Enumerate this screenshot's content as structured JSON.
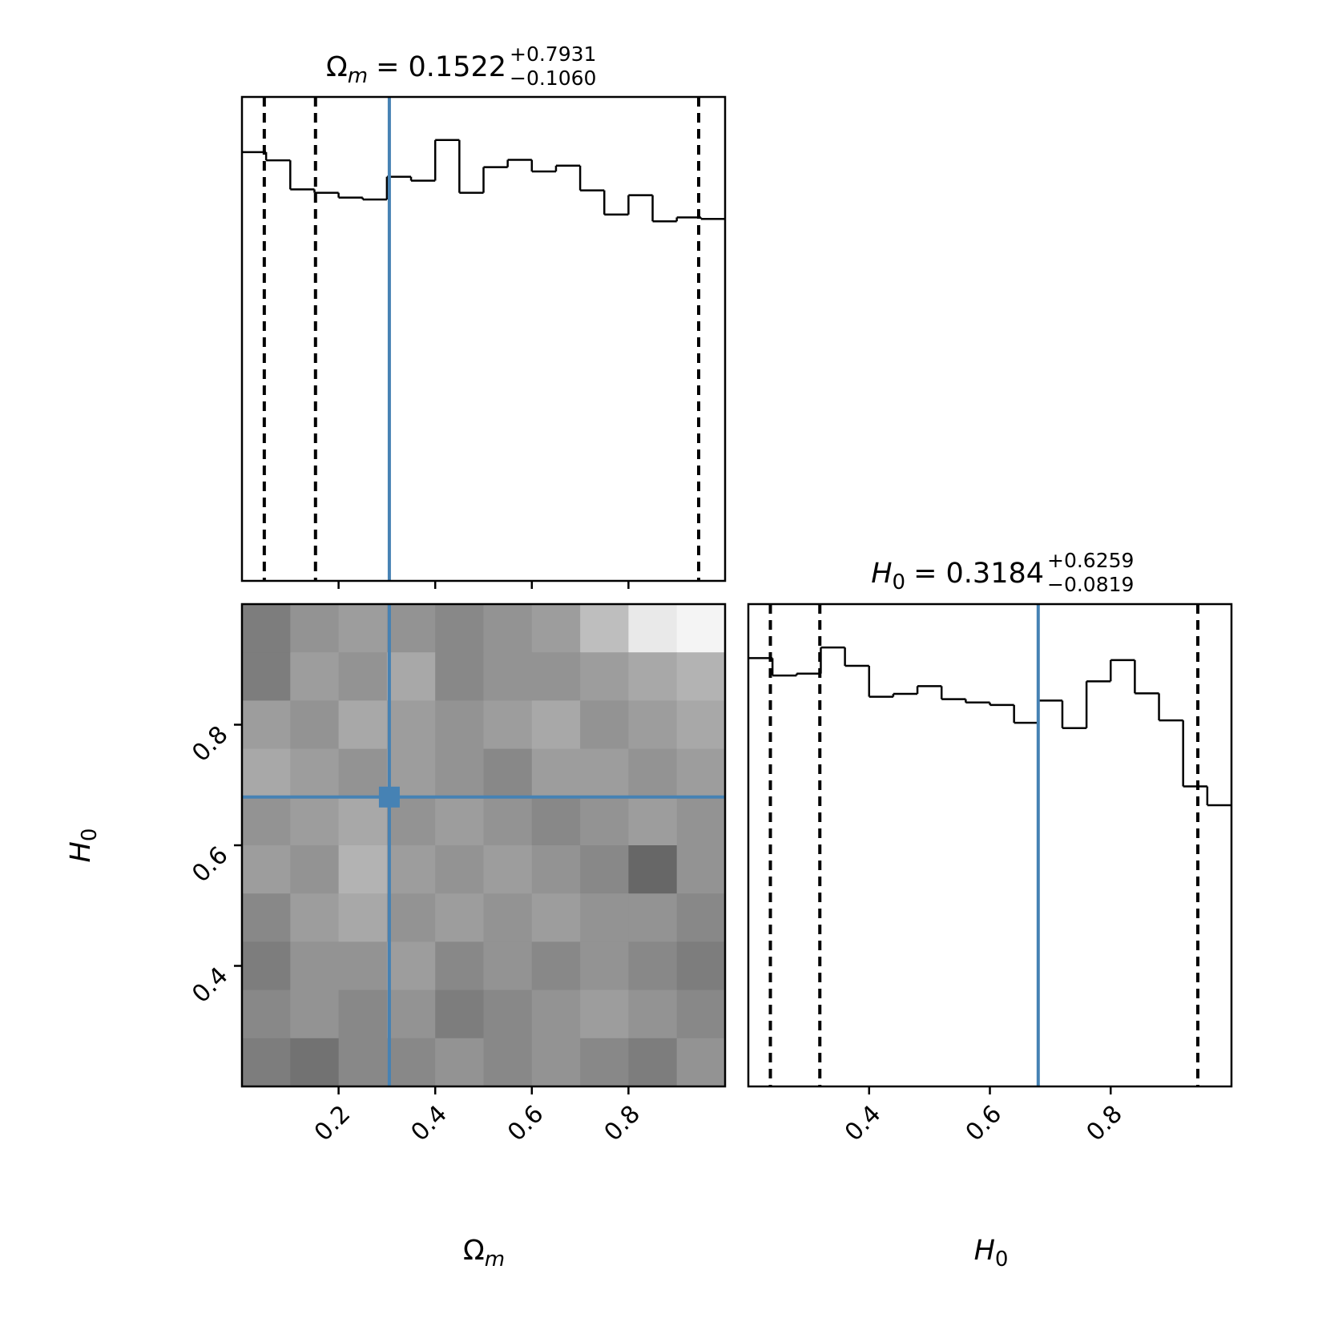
{
  "chart_data": [
    {
      "type": "histogram",
      "title": {
        "symbol": "Ω",
        "subscript": "m",
        "text": "= 0.1522",
        "sup": "+0.7931",
        "sub": "−0.1060"
      },
      "bins": [
        0,
        0.05,
        0.1,
        0.15,
        0.2,
        0.25,
        0.3,
        0.35,
        0.4,
        0.45,
        0.5,
        0.55,
        0.6,
        0.65,
        0.7,
        0.75,
        0.8,
        0.85,
        0.9,
        0.95,
        1.0
      ],
      "values": [
        88.6,
        86.9,
        80.9,
        80.2,
        79.2,
        78.8,
        83.5,
        82.7,
        91.1,
        80.2,
        85.5,
        87.0,
        84.6,
        85.8,
        80.7,
        75.7,
        79.7,
        74.3,
        75.1,
        74.8
      ],
      "color": "#000000",
      "xlim": [
        0,
        1.0
      ],
      "xticks": [
        0.2,
        0.4,
        0.6,
        0.8
      ],
      "xtick_labels": false,
      "ylim": [
        0,
        100
      ],
      "quantiles": [
        0.0462,
        0.1522,
        0.9453
      ],
      "truth": 0.305,
      "truth_color": "#4682b4"
    },
    {
      "type": "hist2d",
      "xlabel": {
        "symbol": "Ω",
        "subscript": "m"
      },
      "ylabel": {
        "symbol": "H",
        "subscript": "0"
      },
      "xlim": [
        0,
        1.0
      ],
      "xticks": [
        0.2,
        0.4,
        0.6,
        0.8
      ],
      "xtick_labels": true,
      "ylim": [
        0.2,
        1.0
      ],
      "yticks": [
        0.4,
        0.6,
        0.8
      ],
      "density": [
        [
          0.6,
          0.5,
          0.45,
          0.5,
          0.55,
          0.5,
          0.45,
          0.3,
          0.1,
          0.05
        ],
        [
          0.6,
          0.45,
          0.5,
          0.4,
          0.55,
          0.5,
          0.5,
          0.45,
          0.4,
          0.35
        ],
        [
          0.45,
          0.5,
          0.4,
          0.45,
          0.5,
          0.45,
          0.4,
          0.5,
          0.45,
          0.4
        ],
        [
          0.4,
          0.45,
          0.5,
          0.45,
          0.5,
          0.55,
          0.45,
          0.45,
          0.5,
          0.45
        ],
        [
          0.5,
          0.45,
          0.4,
          0.5,
          0.45,
          0.5,
          0.55,
          0.5,
          0.45,
          0.5
        ],
        [
          0.45,
          0.5,
          0.35,
          0.45,
          0.5,
          0.45,
          0.5,
          0.55,
          0.7,
          0.5
        ],
        [
          0.55,
          0.45,
          0.4,
          0.5,
          0.45,
          0.5,
          0.45,
          0.5,
          0.5,
          0.55
        ],
        [
          0.6,
          0.5,
          0.5,
          0.45,
          0.55,
          0.5,
          0.55,
          0.5,
          0.55,
          0.6
        ],
        [
          0.55,
          0.5,
          0.55,
          0.5,
          0.6,
          0.55,
          0.5,
          0.45,
          0.5,
          0.55
        ],
        [
          0.6,
          0.65,
          0.55,
          0.55,
          0.5,
          0.55,
          0.5,
          0.55,
          0.6,
          0.5
        ]
      ],
      "truth": [
        0.305,
        0.68
      ],
      "truth_color": "#4682b4"
    },
    {
      "type": "histogram",
      "title": {
        "symbol": "H",
        "subscript": "0",
        "text": "= 0.3184",
        "sup": "+0.6259",
        "sub": "−0.0819"
      },
      "xlabel": {
        "symbol": "H",
        "subscript": "0"
      },
      "bins": [
        0.2,
        0.24,
        0.28,
        0.32,
        0.36,
        0.4,
        0.44,
        0.48,
        0.52,
        0.56,
        0.6,
        0.64,
        0.68,
        0.72,
        0.76,
        0.8,
        0.84,
        0.88,
        0.92,
        0.96,
        1.0
      ],
      "values": [
        88.8,
        85.2,
        85.6,
        91.0,
        87.2,
        80.8,
        81.4,
        83.0,
        80.3,
        79.6,
        79.1,
        75.4,
        80.0,
        74.3,
        84.0,
        88.4,
        81.5,
        75.9,
        62.2,
        58.3
      ],
      "color": "#000000",
      "xlim": [
        0.2,
        1.0
      ],
      "xticks": [
        0.4,
        0.6,
        0.8
      ],
      "xtick_labels": true,
      "ylim": [
        0,
        100
      ],
      "quantiles": [
        0.2365,
        0.3184,
        0.9443
      ],
      "truth": 0.68,
      "truth_color": "#4682b4"
    }
  ]
}
